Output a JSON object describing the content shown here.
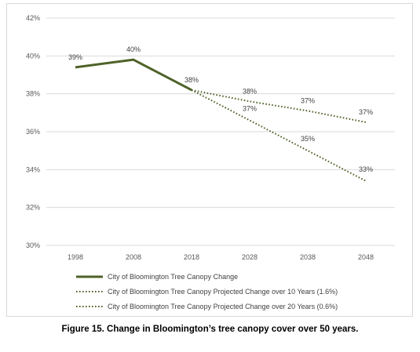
{
  "caption": "Figure 15. Change in Bloomington’s tree canopy cover over 50 years.",
  "chart_data": {
    "type": "line",
    "categories": [
      "1998",
      "2008",
      "2018",
      "2028",
      "2038",
      "2048"
    ],
    "y_ticks": [
      "30%",
      "32%",
      "34%",
      "36%",
      "38%",
      "40%",
      "42%"
    ],
    "ylim": [
      30,
      42
    ],
    "grid": true,
    "legend_position": "bottom-left",
    "series": [
      {
        "name": "City of Bloomington Tree Canopy Change",
        "style": "solid",
        "color": "#4f6228",
        "x": [
          "1998",
          "2008",
          "2018"
        ],
        "values": [
          39.4,
          39.8,
          38.2
        ],
        "labels": [
          "39%",
          "40%",
          "38%"
        ]
      },
      {
        "name": "City of Bloomington Tree Canopy Projected Change  over 10 Years (1.6%)",
        "style": "dotted",
        "color": "#4f6228",
        "x": [
          "2018",
          "2028",
          "2038",
          "2048"
        ],
        "values": [
          38.2,
          36.6,
          35.0,
          33.4
        ],
        "labels": [
          "",
          "37%",
          "35%",
          "33%"
        ]
      },
      {
        "name": "City of Bloomington Tree Canopy Projected Change over 20 Years (0.6%)",
        "style": "dotted",
        "color": "#4f6228",
        "x": [
          "2018",
          "2028",
          "2038",
          "2048"
        ],
        "values": [
          38.2,
          37.6,
          37.1,
          36.5
        ],
        "labels": [
          "",
          "38%",
          "37%",
          "37%"
        ]
      }
    ]
  }
}
